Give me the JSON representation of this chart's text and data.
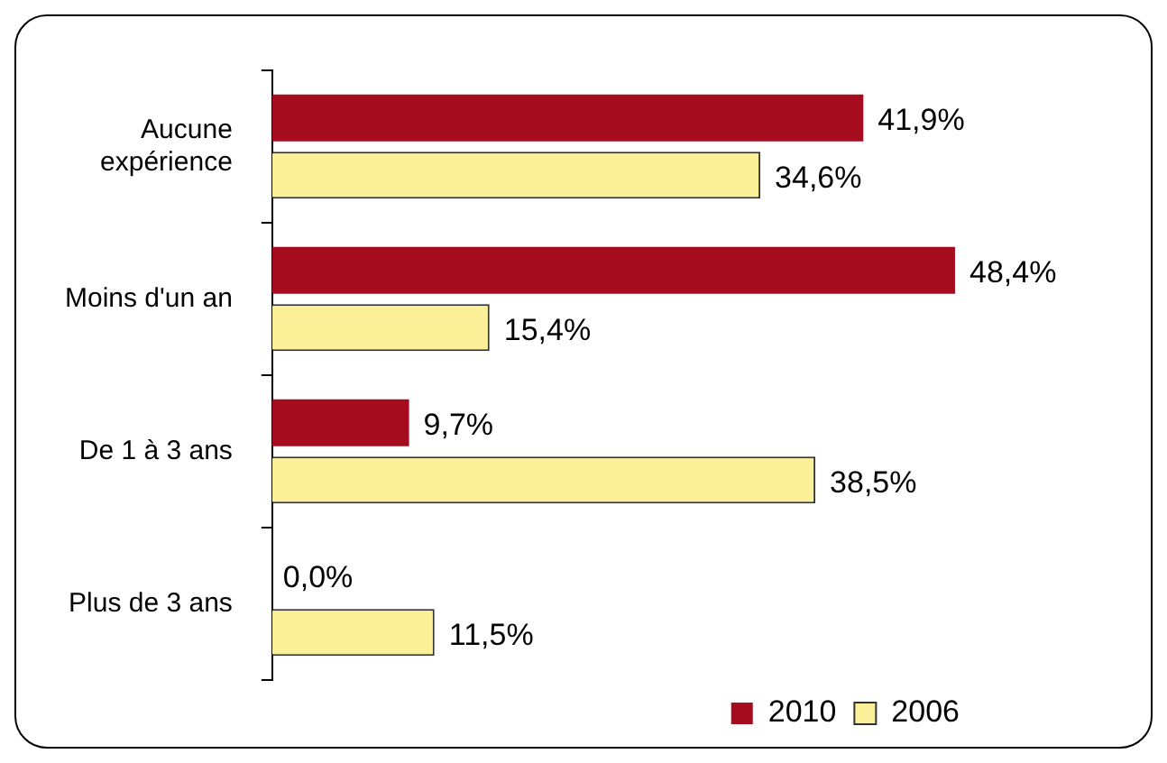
{
  "chart_data": {
    "type": "bar",
    "orientation": "horizontal",
    "categories": [
      "Aucune\nexpérience",
      "Moins d'un an",
      "De 1 à 3 ans",
      "Plus de 3 ans"
    ],
    "series": [
      {
        "name": "2010",
        "color": "#a50d1f",
        "values": [
          41.9,
          48.4,
          9.7,
          0.0
        ],
        "value_labels": [
          "41,9%",
          "48,4%",
          "9,7%",
          "0,0%"
        ]
      },
      {
        "name": "2006",
        "color": "#fbef97",
        "values": [
          34.6,
          15.4,
          38.5,
          11.5
        ],
        "value_labels": [
          "34,6%",
          "15,4%",
          "38,5%",
          "11,5%"
        ]
      }
    ],
    "tick_labels": "y",
    "grid": false,
    "legend": "bottom right"
  }
}
